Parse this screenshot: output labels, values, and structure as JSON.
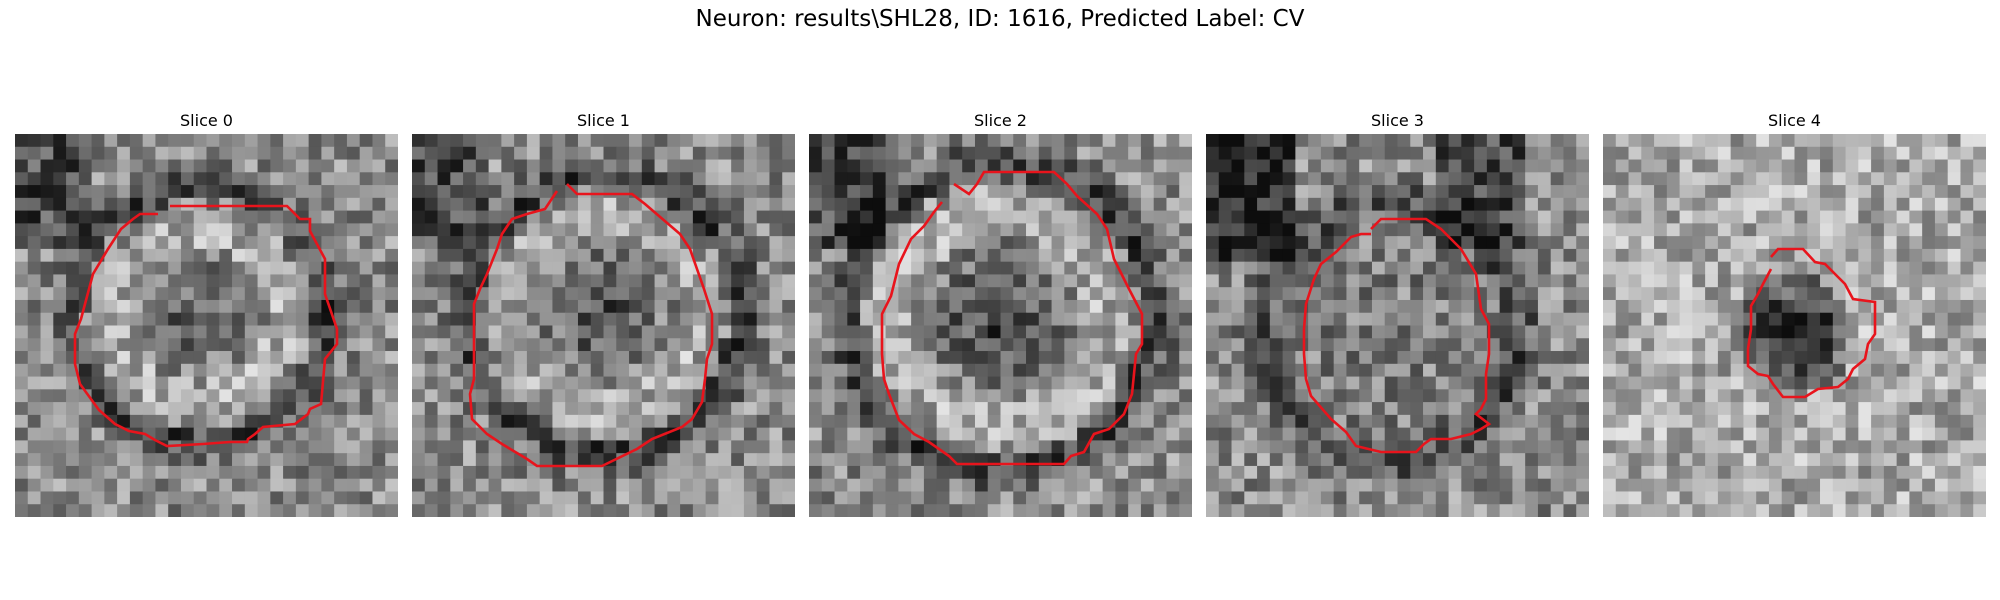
{
  "figure": {
    "title": "Neuron: results\\SHL28, ID: 1616, Predicted Label: CV"
  },
  "colors": {
    "contour": "#e8141c",
    "background": "#ffffff"
  },
  "panels": [
    {
      "title": "Slice 0"
    },
    {
      "title": "Slice 1"
    },
    {
      "title": "Slice 2"
    },
    {
      "title": "Slice 3"
    },
    {
      "title": "Slice 4"
    }
  ]
}
